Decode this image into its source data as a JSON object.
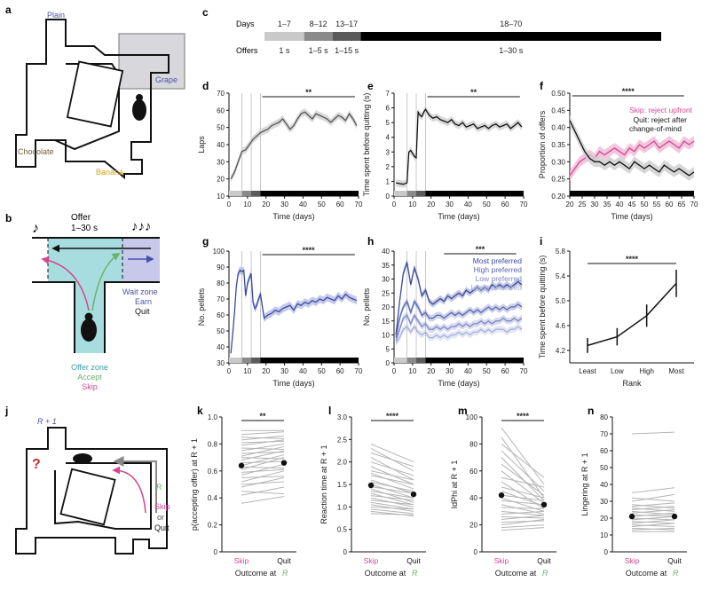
{
  "panel_letters": {
    "a": "a",
    "b": "b",
    "c": "c",
    "d": "d",
    "e": "e",
    "f": "f",
    "g": "g",
    "h": "h",
    "i": "i",
    "j": "j",
    "k": "k",
    "l": "l",
    "m": "m",
    "n": "n"
  },
  "maze": {
    "plain": "Plain",
    "grape": "Grape",
    "chocolate": "Chocolate",
    "banana": "Banana"
  },
  "zone": {
    "offer": "Offer",
    "offer_range": "1–30 s",
    "wait_zone": "Wait zone",
    "earn": "Earn",
    "quit": "Quit",
    "offer_zone": "Offer zone",
    "accept": "Accept",
    "skip": "Skip"
  },
  "timeline": {
    "days_label": "Days",
    "offers_label": "Offers",
    "segments": [
      {
        "days": "1–7",
        "offers": "1 s",
        "color": "#c9c9c9"
      },
      {
        "days": "8–12",
        "offers": "1–5 s",
        "color": "#8a8a8a"
      },
      {
        "days": "13–17",
        "offers": "1–15 s",
        "color": "#5a5a5a"
      },
      {
        "days": "18–70",
        "offers": "1–30 s",
        "color": "#000000"
      }
    ]
  },
  "colors": {
    "skip": "#d2478f",
    "quit": "#111111",
    "accept": "#6bb36b",
    "wait": "#4a52a8",
    "offer_zone": "#a8dde0",
    "grape_box": "#d8d8dc",
    "most": "#3a4aa0"
  },
  "stats": {
    "d": "**",
    "e": "**",
    "f": "****",
    "g": "****",
    "h": "***",
    "i": "****",
    "k": "**",
    "l": "****",
    "m": "****"
  },
  "chart_data": [
    {
      "panel": "d",
      "type": "line",
      "xlabel": "Time (days)",
      "ylabel": "Laps",
      "xlim": [
        0,
        70
      ],
      "ylim": [
        10,
        70
      ],
      "xticks": [
        "0",
        "10",
        "20",
        "30",
        "40",
        "50",
        "60",
        "70"
      ],
      "yticks": [
        "10",
        "20",
        "30",
        "40",
        "50",
        "60",
        "70"
      ],
      "x": [
        1,
        3,
        5,
        7,
        9,
        11,
        13,
        15,
        17,
        19,
        21,
        23,
        25,
        27,
        29,
        31,
        33,
        35,
        37,
        39,
        41,
        43,
        45,
        47,
        49,
        51,
        53,
        55,
        57,
        59,
        61,
        63,
        65,
        67,
        69
      ],
      "values": [
        20,
        24,
        30,
        36,
        37,
        40,
        43,
        45,
        47,
        48,
        49,
        51,
        52,
        53,
        55,
        52,
        49,
        51,
        55,
        58,
        59,
        57,
        55,
        58,
        57,
        56,
        55,
        53,
        55,
        57,
        56,
        54,
        58,
        55,
        51
      ]
    },
    {
      "panel": "e",
      "type": "line",
      "xlabel": "Time (days)",
      "ylabel": "Time spent before quitting (s)",
      "xlim": [
        0,
        70
      ],
      "ylim": [
        0,
        7
      ],
      "xticks": [
        "0",
        "10",
        "20",
        "30",
        "40",
        "50",
        "60",
        "70"
      ],
      "yticks": [
        "0",
        "1",
        "2",
        "3",
        "4",
        "5",
        "6",
        "7"
      ],
      "x": [
        1,
        3,
        5,
        7,
        8,
        9,
        10,
        11,
        12,
        13,
        14,
        15,
        16,
        17,
        19,
        21,
        23,
        25,
        27,
        29,
        31,
        33,
        35,
        37,
        39,
        41,
        43,
        45,
        47,
        49,
        51,
        53,
        55,
        57,
        59,
        61,
        63,
        65,
        67,
        69
      ],
      "values": [
        0.9,
        0.85,
        0.8,
        0.9,
        3.0,
        3.1,
        2.9,
        2.7,
        2.6,
        5.7,
        5.5,
        5.4,
        5.7,
        5.9,
        5.5,
        5.3,
        5.4,
        5.2,
        5.1,
        5.0,
        5.2,
        4.9,
        4.8,
        5.0,
        4.7,
        4.8,
        4.9,
        4.6,
        4.7,
        4.8,
        4.6,
        4.8,
        4.9,
        4.7,
        4.8,
        4.9,
        4.6,
        4.8,
        5.0,
        4.7
      ]
    },
    {
      "panel": "f",
      "type": "line",
      "xlabel": "Time (days)",
      "ylabel": "Proportion of offers",
      "xlim": [
        20,
        70
      ],
      "ylim": [
        0.2,
        0.5
      ],
      "xticks": [
        "20",
        "25",
        "30",
        "35",
        "40",
        "45",
        "50",
        "55",
        "60",
        "65",
        "70"
      ],
      "yticks": [
        "0.20",
        "0.25",
        "0.30",
        "0.35",
        "0.40",
        "0.45",
        "0.50"
      ],
      "legend": [
        "Skip: reject upfront",
        "Quit: reject after change-of-mind"
      ],
      "x": [
        20,
        22,
        24,
        26,
        28,
        30,
        32,
        34,
        36,
        38,
        40,
        42,
        44,
        46,
        48,
        50,
        52,
        54,
        56,
        58,
        60,
        62,
        64,
        66,
        68,
        70
      ],
      "series": [
        {
          "name": "Skip: reject upfront",
          "color": "#d2478f",
          "values": [
            0.26,
            0.28,
            0.3,
            0.31,
            0.32,
            0.31,
            0.33,
            0.32,
            0.33,
            0.34,
            0.33,
            0.32,
            0.34,
            0.33,
            0.35,
            0.34,
            0.35,
            0.36,
            0.34,
            0.35,
            0.36,
            0.35,
            0.34,
            0.36,
            0.35,
            0.36
          ]
        },
        {
          "name": "Quit: reject after change-of-mind",
          "color": "#111111",
          "values": [
            0.42,
            0.39,
            0.36,
            0.33,
            0.31,
            0.3,
            0.3,
            0.29,
            0.3,
            0.29,
            0.3,
            0.29,
            0.28,
            0.3,
            0.29,
            0.28,
            0.29,
            0.28,
            0.27,
            0.29,
            0.28,
            0.27,
            0.28,
            0.27,
            0.26,
            0.27
          ]
        }
      ]
    },
    {
      "panel": "g",
      "type": "line",
      "xlabel": "Time (days)",
      "ylabel": "No. pellets",
      "xlim": [
        0,
        70
      ],
      "ylim": [
        30,
        100
      ],
      "xticks": [
        "0",
        "10",
        "20",
        "30",
        "40",
        "50",
        "60",
        "70"
      ],
      "yticks": [
        "30",
        "40",
        "50",
        "60",
        "70",
        "80",
        "90",
        "100"
      ],
      "x": [
        1,
        2,
        3,
        4,
        5,
        6,
        7,
        8,
        9,
        10,
        11,
        12,
        13,
        14,
        15,
        16,
        17,
        19,
        21,
        23,
        25,
        27,
        29,
        31,
        33,
        35,
        37,
        39,
        41,
        43,
        45,
        47,
        49,
        51,
        53,
        55,
        57,
        59,
        61,
        63,
        65,
        67,
        69
      ],
      "values": [
        36,
        48,
        62,
        78,
        86,
        88,
        87,
        88,
        72,
        80,
        83,
        86,
        68,
        64,
        66,
        70,
        73,
        58,
        60,
        61,
        63,
        62,
        64,
        65,
        66,
        63,
        67,
        66,
        68,
        67,
        69,
        68,
        70,
        69,
        71,
        70,
        69,
        72,
        70,
        73,
        71,
        70,
        69
      ]
    },
    {
      "panel": "h",
      "type": "line",
      "xlabel": "Time (days)",
      "ylabel": "No. pellets",
      "xlim": [
        0,
        70
      ],
      "ylim": [
        0,
        40
      ],
      "xticks": [
        "0",
        "10",
        "20",
        "30",
        "40",
        "50",
        "60",
        "70"
      ],
      "yticks": [
        "0",
        "5",
        "10",
        "15",
        "20",
        "25",
        "30",
        "35",
        "40"
      ],
      "legend": [
        "Most preferred",
        "High preferred",
        "Low preferred",
        "Least preferred"
      ],
      "x": [
        1,
        3,
        5,
        7,
        9,
        11,
        13,
        15,
        17,
        19,
        21,
        23,
        25,
        27,
        29,
        31,
        33,
        35,
        37,
        39,
        41,
        43,
        45,
        47,
        49,
        51,
        53,
        55,
        57,
        59,
        61,
        63,
        65,
        67,
        69
      ],
      "series": [
        {
          "name": "Most preferred",
          "color": "#3a4aa0",
          "values": [
            10,
            22,
            32,
            36,
            28,
            34,
            30,
            24,
            26,
            22,
            21,
            22,
            23,
            22,
            24,
            23,
            24,
            25,
            24,
            26,
            25,
            26,
            27,
            26,
            27,
            26,
            28,
            27,
            28,
            27,
            28,
            27,
            28,
            29,
            28
          ]
        },
        {
          "name": "High preferred",
          "color": "#5866b5",
          "values": [
            9,
            16,
            20,
            22,
            18,
            22,
            20,
            17,
            18,
            16,
            16,
            17,
            17,
            16,
            17,
            18,
            17,
            18,
            17,
            18,
            19,
            18,
            19,
            18,
            19,
            20,
            19,
            20,
            19,
            20,
            19,
            20,
            20,
            21,
            20
          ]
        },
        {
          "name": "Low preferred",
          "color": "#7d89c8",
          "values": [
            8,
            12,
            16,
            17,
            14,
            17,
            15,
            13,
            14,
            12,
            12,
            13,
            12,
            13,
            12,
            13,
            13,
            14,
            13,
            14,
            13,
            14,
            14,
            15,
            14,
            15,
            14,
            15,
            15,
            16,
            15,
            15,
            16,
            15,
            16
          ]
        },
        {
          "name": "Least preferred",
          "color": "#a7b0da",
          "values": [
            7,
            9,
            12,
            13,
            11,
            13,
            11,
            10,
            11,
            9,
            9,
            10,
            9,
            10,
            9,
            10,
            10,
            11,
            10,
            11,
            10,
            11,
            11,
            12,
            11,
            12,
            11,
            12,
            12,
            12,
            11,
            12,
            12,
            13,
            12
          ]
        }
      ]
    },
    {
      "panel": "i",
      "type": "line",
      "xlabel": "Rank",
      "ylabel": "Time spent before quitting (s)",
      "ylim": [
        4.0,
        5.8
      ],
      "categories": [
        "Least",
        "Low",
        "High",
        "Most"
      ],
      "yticks": [
        "4.2",
        "4.6",
        "5.0",
        "5.4",
        "5.8"
      ],
      "values": [
        4.28,
        4.42,
        4.76,
        5.28
      ],
      "errors": [
        0.12,
        0.14,
        0.18,
        0.22
      ]
    },
    {
      "panel": "k",
      "type": "scatter",
      "xlabel": "Outcome at R",
      "ylabel": "p(accepting offer) at R + 1",
      "ylim": [
        0,
        1
      ],
      "categories": [
        "Skip",
        "Quit"
      ],
      "yticks": [
        "0",
        "0.2",
        "0.4",
        "0.6",
        "0.8",
        "1.0"
      ],
      "means": [
        0.64,
        0.66
      ],
      "pairs": [
        [
          0.36,
          0.41
        ],
        [
          0.42,
          0.48
        ],
        [
          0.45,
          0.43
        ],
        [
          0.48,
          0.55
        ],
        [
          0.5,
          0.52
        ],
        [
          0.52,
          0.6
        ],
        [
          0.55,
          0.56
        ],
        [
          0.57,
          0.65
        ],
        [
          0.59,
          0.61
        ],
        [
          0.61,
          0.7
        ],
        [
          0.63,
          0.62
        ],
        [
          0.64,
          0.72
        ],
        [
          0.66,
          0.67
        ],
        [
          0.68,
          0.75
        ],
        [
          0.7,
          0.69
        ],
        [
          0.71,
          0.78
        ],
        [
          0.73,
          0.74
        ],
        [
          0.75,
          0.8
        ],
        [
          0.77,
          0.76
        ],
        [
          0.79,
          0.83
        ],
        [
          0.81,
          0.82
        ],
        [
          0.83,
          0.86
        ],
        [
          0.85,
          0.84
        ],
        [
          0.87,
          0.89
        ],
        [
          0.9,
          0.9
        ]
      ]
    },
    {
      "panel": "l",
      "type": "scatter",
      "xlabel": "Outcome at R",
      "ylabel": "Reaction time at R + 1",
      "ylim": [
        0,
        3
      ],
      "categories": [
        "Skip",
        "Quit"
      ],
      "yticks": [
        "0",
        "0.5",
        "1.0",
        "1.5",
        "2.0",
        "2.5",
        "3.0"
      ],
      "means": [
        1.48,
        1.28
      ],
      "pairs": [
        [
          2.4,
          2.0
        ],
        [
          2.3,
          1.8
        ],
        [
          2.2,
          1.9
        ],
        [
          2.1,
          1.6
        ],
        [
          2.0,
          1.7
        ],
        [
          1.9,
          1.5
        ],
        [
          1.8,
          1.6
        ],
        [
          1.75,
          1.4
        ],
        [
          1.7,
          1.5
        ],
        [
          1.6,
          1.3
        ],
        [
          1.55,
          1.35
        ],
        [
          1.5,
          1.2
        ],
        [
          1.45,
          1.3
        ],
        [
          1.4,
          1.1
        ],
        [
          1.35,
          1.2
        ],
        [
          1.3,
          1.05
        ],
        [
          1.25,
          1.15
        ],
        [
          1.2,
          1.0
        ],
        [
          1.15,
          1.05
        ],
        [
          1.1,
          0.95
        ],
        [
          1.05,
          0.9
        ],
        [
          1.0,
          0.95
        ],
        [
          0.95,
          0.85
        ],
        [
          0.9,
          0.8
        ],
        [
          0.85,
          0.82
        ]
      ]
    },
    {
      "panel": "m",
      "type": "scatter",
      "xlabel": "Outcome at R",
      "ylabel": "IdPhi at R + 1",
      "ylim": [
        0,
        100
      ],
      "categories": [
        "Skip",
        "Quit"
      ],
      "yticks": [
        "0",
        "20",
        "40",
        "60",
        "80",
        "100"
      ],
      "means": [
        42,
        35
      ],
      "pairs": [
        [
          92,
          50
        ],
        [
          85,
          40
        ],
        [
          80,
          55
        ],
        [
          75,
          45
        ],
        [
          70,
          38
        ],
        [
          65,
          42
        ],
        [
          60,
          36
        ],
        [
          55,
          48
        ],
        [
          52,
          32
        ],
        [
          48,
          40
        ],
        [
          45,
          34
        ],
        [
          42,
          38
        ],
        [
          40,
          30
        ],
        [
          38,
          35
        ],
        [
          35,
          28
        ],
        [
          33,
          32
        ],
        [
          30,
          27
        ],
        [
          28,
          30
        ],
        [
          26,
          25
        ],
        [
          24,
          27
        ],
        [
          22,
          23
        ],
        [
          20,
          24
        ],
        [
          18,
          20
        ],
        [
          16,
          18
        ]
      ]
    },
    {
      "panel": "n",
      "type": "scatter",
      "xlabel": "Outcome at R",
      "ylabel": "Lingering at R + 1",
      "ylim": [
        0,
        80
      ],
      "categories": [
        "Skip",
        "Quit"
      ],
      "yticks": [
        "0",
        "10",
        "20",
        "30",
        "40",
        "50",
        "60",
        "70",
        "80"
      ],
      "means": [
        21,
        21
      ],
      "pairs": [
        [
          70,
          71
        ],
        [
          35,
          38
        ],
        [
          32,
          30
        ],
        [
          30,
          34
        ],
        [
          28,
          26
        ],
        [
          27,
          29
        ],
        [
          26,
          24
        ],
        [
          25,
          27
        ],
        [
          24,
          22
        ],
        [
          23,
          25
        ],
        [
          22,
          21
        ],
        [
          21,
          23
        ],
        [
          20,
          19
        ],
        [
          19,
          21
        ],
        [
          18,
          17
        ],
        [
          17,
          19
        ],
        [
          16,
          15
        ],
        [
          15,
          17
        ],
        [
          14,
          13
        ],
        [
          13,
          14
        ],
        [
          12,
          12
        ]
      ]
    }
  ]
}
